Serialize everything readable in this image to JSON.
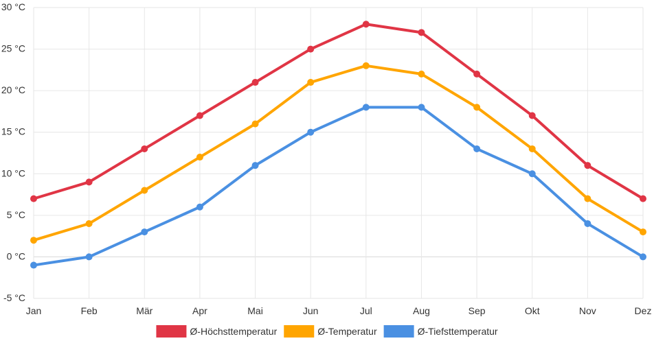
{
  "chart_data": {
    "type": "line",
    "title": "",
    "xlabel": "",
    "ylabel": "",
    "y_unit": "°C",
    "ylim": [
      -5,
      30
    ],
    "y_ticks": [
      30,
      25,
      20,
      15,
      10,
      5,
      0,
      -5
    ],
    "y_tick_labels": [
      "30 °C",
      "25 °C",
      "20 °C",
      "15 °C",
      "10 °C",
      "5 °C",
      "0 °C",
      "-5 °C"
    ],
    "categories": [
      "Jan",
      "Feb",
      "Mär",
      "Apr",
      "Mai",
      "Jun",
      "Jul",
      "Aug",
      "Sep",
      "Okt",
      "Nov",
      "Dez"
    ],
    "legend_position": "bottom",
    "grid": true,
    "series": [
      {
        "name": "Ø-Höchsttemperatur",
        "color": "#e03545",
        "values": [
          7,
          9,
          13,
          17,
          21,
          25,
          28,
          27,
          22,
          17,
          11,
          7
        ]
      },
      {
        "name": "Ø-Temperatur",
        "color": "#ffa500",
        "values": [
          2,
          4,
          8,
          12,
          16,
          21,
          23,
          22,
          18,
          13,
          7,
          3
        ]
      },
      {
        "name": "Ø-Tiefsttemperatur",
        "color": "#4a90e2",
        "values": [
          -1,
          0,
          3,
          6,
          11,
          15,
          18,
          18,
          13,
          10,
          4,
          0
        ]
      }
    ]
  }
}
